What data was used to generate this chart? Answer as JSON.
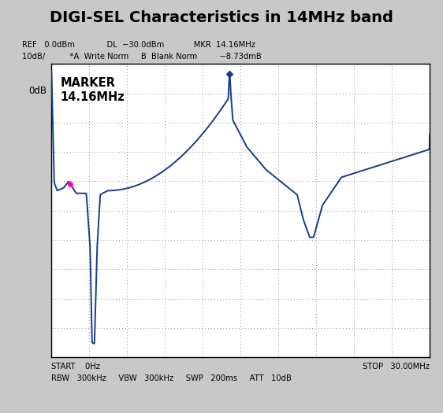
{
  "title": "DIGI-SEL Characteristics in 14MHz band",
  "title_fontsize": 14,
  "title_fontweight": "bold",
  "info_line1": "REF   0.0dBm             DL  −30.0dBm            MKR  14.16MHz",
  "info_line2": "10dB/          *A  Write Norm     B  Blank Norm         −8.73dmB",
  "ylabel": "0dB",
  "marker_text": "MARKER\n14.16MHz",
  "plot_bg": "#ffffff",
  "outer_bg": "#c8c8c8",
  "line_color": "#1a3a8a",
  "marker_dot_color": "#1a3a8a",
  "magenta_color": "#ff00bb",
  "grid_color": "#8888aa",
  "xlim": [
    0,
    30
  ],
  "ylim": [
    -10,
    1
  ],
  "n_xgrid": 10,
  "n_ygrid": 11,
  "start_label": "START    0Hz",
  "stop_label": "STOP   30.00MHz",
  "bottom_label": "RBW   300kHz     VBW   300kHz     SWP   200ms     ATT   10dB"
}
